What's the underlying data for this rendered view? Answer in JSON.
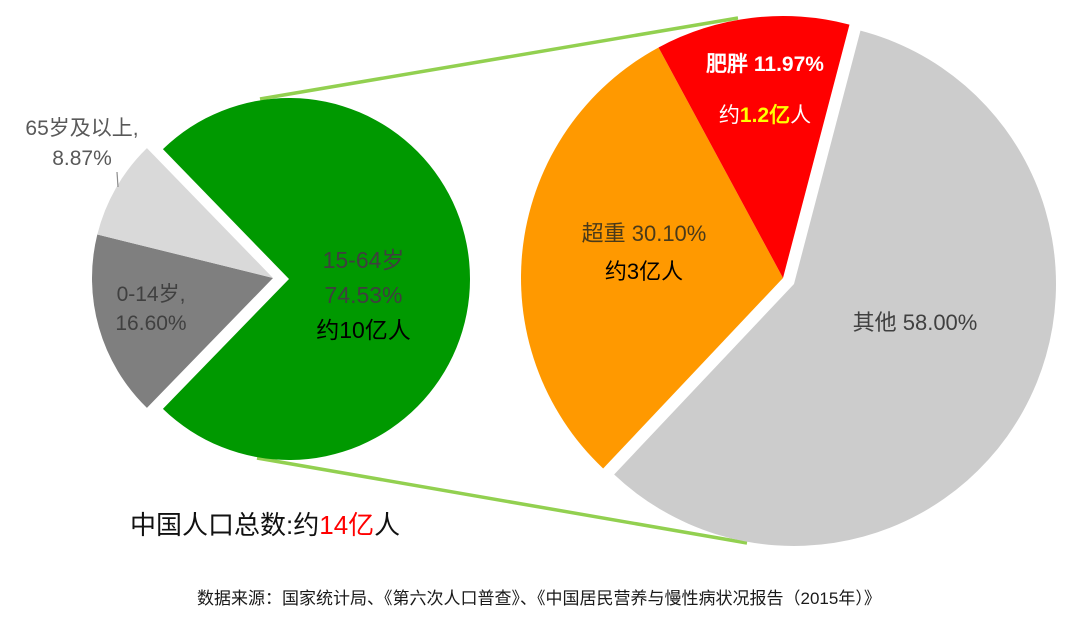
{
  "chart_data": [
    {
      "type": "pie",
      "title": "中国人口总数:约14亿人",
      "categories": [
        "15-64岁",
        "0-14岁",
        "65岁及以上"
      ],
      "values": [
        74.53,
        16.6,
        8.87
      ],
      "unit": "%",
      "colors": [
        "#009900",
        "#7f7f7f",
        "#d9d9d9"
      ],
      "annotations": {
        "15-64岁": "约10亿人"
      },
      "exploded": [
        "15-64岁"
      ]
    },
    {
      "type": "pie",
      "title": "",
      "categories": [
        "其他",
        "超重",
        "肥胖"
      ],
      "values": [
        58.0,
        30.1,
        11.97
      ],
      "unit": "%",
      "colors": [
        "#cccccc",
        "#ff9900",
        "#ff0000"
      ],
      "annotations": {
        "超重": "约3亿人",
        "肥胖": "约1.2亿人"
      },
      "exploded": [
        "其他"
      ]
    }
  ],
  "connector_color": "#92d050",
  "labels": {
    "age_65": {
      "name": "65岁及以上,",
      "pct": "8.87%"
    },
    "age_0_14": {
      "name": "0-14岁,",
      "pct": "16.60%"
    },
    "age_15_64": {
      "name": "15-64岁",
      "pct": "74.53%",
      "note": "约10亿人"
    },
    "obese": {
      "pct": "肥胖 11.97%",
      "note_prefix": "约",
      "note_highlight": "1.2亿",
      "note_suffix": "人"
    },
    "overweight": {
      "pct": "超重 30.10%",
      "note": "约3亿人"
    },
    "other": {
      "pct": "其他 58.00%"
    }
  },
  "footer": {
    "total_prefix": "中国人口总数:约",
    "total_highlight": "14亿",
    "total_suffix": "人",
    "source": "数据来源：国家统计局、《第六次人口普查》、《中国居民营养与慢性病状况报告（2015年）》"
  }
}
